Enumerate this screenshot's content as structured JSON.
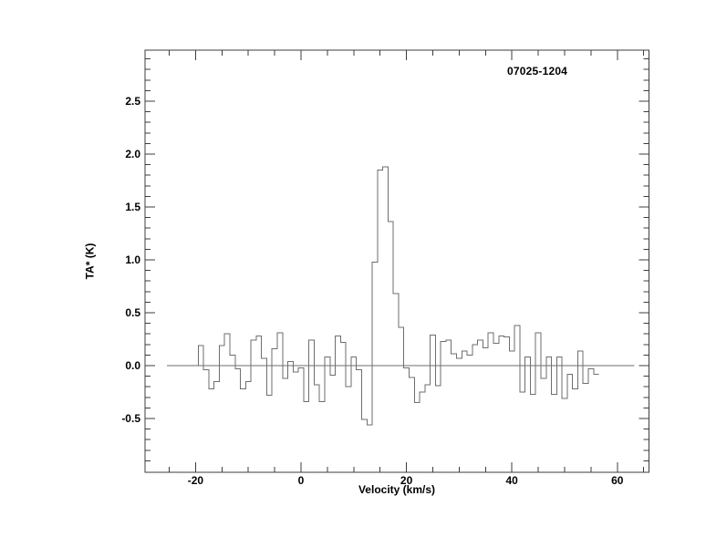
{
  "page": {
    "background_color": "#ffffff",
    "text_color": "#000000",
    "axis_color": "#3d3d3d",
    "trace_color": "#6e6e6e"
  },
  "chart_data": {
    "type": "line",
    "plot_style": "histogram-step",
    "title": "07025-1204",
    "xlabel": "Velocity (km/s)",
    "ylabel": "TA* (K)",
    "xlim": [
      -29.4,
      66.0
    ],
    "ylim": [
      -1.0,
      3.0
    ],
    "grid": false,
    "legend": "none",
    "x_major_ticks": [
      -20,
      0,
      20,
      40,
      60
    ],
    "x_tick_labels": [
      "-20",
      "0",
      "20",
      "40",
      "60"
    ],
    "x_minor_tick_step": 5,
    "y_major_ticks": [
      2.5,
      2.0,
      1.5,
      1.0,
      0.5,
      0.0,
      -0.5
    ],
    "y_tick_labels": [
      "2.5",
      "2.0",
      "1.5",
      "1.0",
      "0.5",
      "0.0",
      "-0.5"
    ],
    "y_minor_tick_step": 0.1,
    "baseline": {
      "value": 0.0,
      "x_range": [
        -25.4,
        63.2
      ]
    },
    "peak": {
      "velocity": 15.5,
      "ta_max": 1.88
    },
    "series": [
      {
        "name": "spectrum",
        "x_start": -19,
        "x_step": 1,
        "values": [
          0.19,
          -0.04,
          -0.22,
          -0.15,
          0.19,
          0.3,
          0.1,
          -0.03,
          -0.22,
          -0.15,
          0.24,
          0.28,
          0.07,
          -0.28,
          0.16,
          0.31,
          -0.12,
          0.04,
          -0.06,
          -0.02,
          -0.34,
          0.24,
          -0.18,
          -0.34,
          0.08,
          -0.09,
          0.28,
          0.22,
          -0.2,
          0.08,
          -0.04,
          -0.51,
          -0.56,
          0.98,
          1.85,
          1.88,
          1.36,
          0.68,
          0.36,
          -0.02,
          -0.11,
          -0.35,
          -0.25,
          -0.18,
          0.29,
          -0.19,
          0.23,
          0.24,
          0.11,
          0.07,
          0.14,
          0.1,
          0.2,
          0.24,
          0.17,
          0.31,
          0.21,
          0.28,
          0.27,
          0.14,
          0.38,
          -0.25,
          0.08,
          -0.27,
          0.31,
          -0.12,
          0.08,
          -0.27,
          0.08,
          -0.31,
          -0.08,
          -0.22,
          0.14,
          -0.17,
          -0.03,
          -0.08
        ]
      }
    ]
  }
}
